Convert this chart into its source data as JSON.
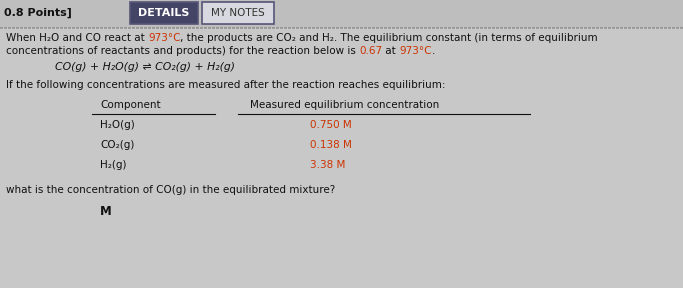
{
  "bg_color": "#bebebe",
  "body_bg": "#c8c8c8",
  "val_color": "#cc3300",
  "text_color": "#111111",
  "header_text": "DETAILS",
  "notes_text": "MY NOTES",
  "points_text": "0.8 Points]",
  "font_size": 7.5,
  "font_size_eq": 7.8,
  "line1a": "When H₂O and CO react at ",
  "line1b": "973°C",
  "line1c": ", the products are CO₂ and H₂. The equilibrium constant (in terms of equilibrium",
  "line2a": "concentrations of reactants and products) for the reaction below is ",
  "line2b": "0.67",
  "line2c": " at ",
  "line2d": "973°C",
  "line2e": ".",
  "equation": "CO(g) + H₂O(g) ⇌ CO₂(g) + H₂(g)",
  "line3": "If the following concentrations are measured after the reaction reaches equilibrium:",
  "col1_header": "Component",
  "col2_header": "Measured equilibrium concentration",
  "row1_comp": "H₂O(g)",
  "row1_val": "0.750 M",
  "row2_comp": "CO₂(g)",
  "row2_val": "0.138 M",
  "row3_comp": "H₂(g)",
  "row3_val": "3.38 M",
  "question": "what is the concentration of CO(g) in the equilibrated mixture?",
  "answer_label": "M"
}
